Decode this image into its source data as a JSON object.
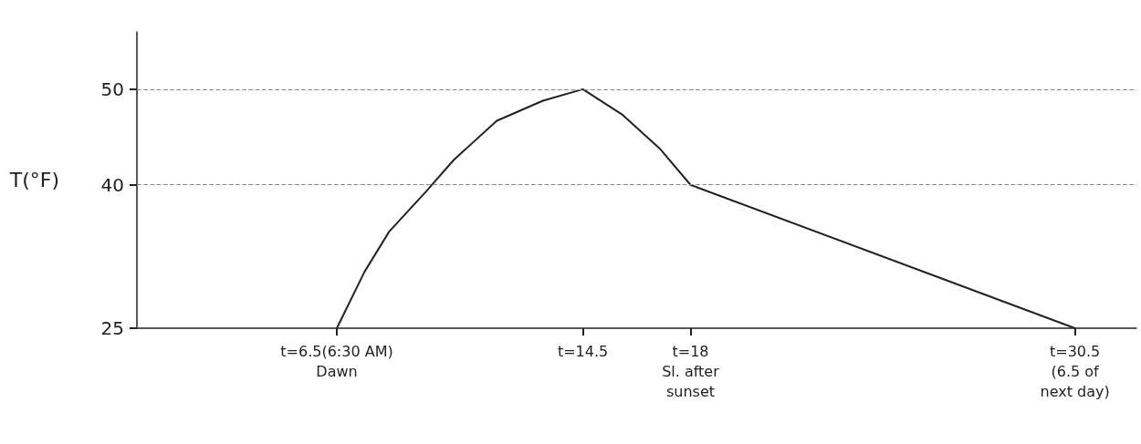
{
  "chart_data": {
    "type": "line",
    "ylabel": "T(°F)",
    "x": [
      6.5,
      7.4,
      8.2,
      9.4,
      10.3,
      11.7,
      13.2,
      14.5,
      15.8,
      17.0,
      18,
      30.5
    ],
    "series": [
      {
        "color": "#222222",
        "values": [
          25,
          30.9,
          35.1,
          39.3,
          42.6,
          46.7,
          48.8,
          50,
          47.3,
          43.8,
          40,
          25
        ]
      }
    ],
    "xlim": [
      0,
      32.5
    ],
    "xticks": [
      {
        "value": 6.5,
        "label": "t=6.5(6:30 AM)\nDawn"
      },
      {
        "value": 14.5,
        "label": "t=14.5"
      },
      {
        "value": 18,
        "label": "t=18\nSl. after\nsunset"
      },
      {
        "value": 30.5,
        "label": "t=30.5\n(6.5 of\nnext day)"
      }
    ],
    "ylim": [
      25,
      56
    ],
    "yticks": [
      25,
      40,
      50
    ],
    "ref_lines": [
      {
        "axis": "y",
        "value": 50,
        "color": "#888888",
        "line_style": "dashed"
      },
      {
        "axis": "y",
        "value": 40,
        "color": "#888888",
        "line_style": "dashed"
      }
    ],
    "grid": false,
    "marker": "none",
    "line_style": "solid"
  }
}
